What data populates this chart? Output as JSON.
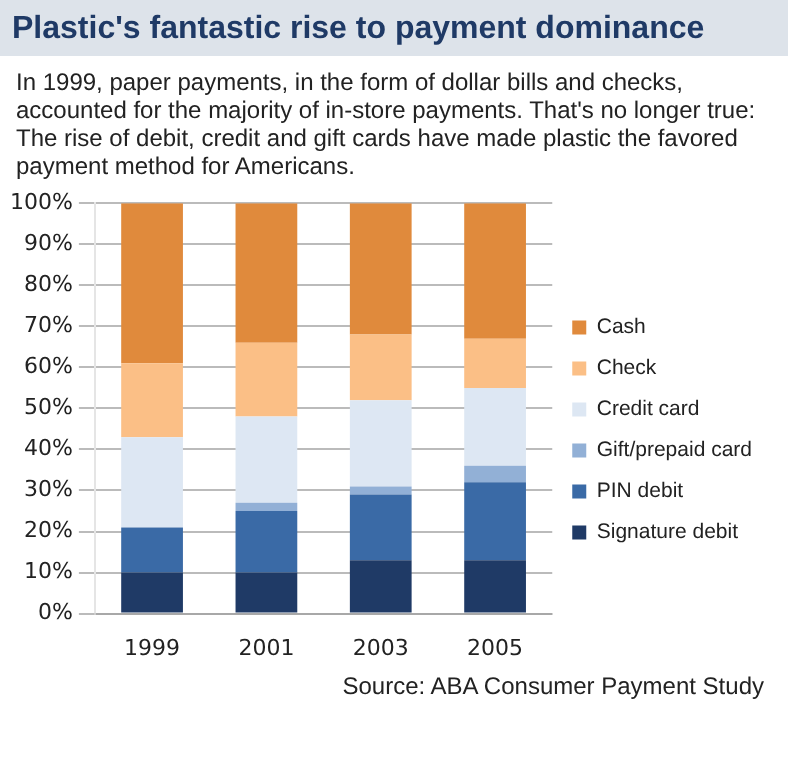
{
  "chart_data": {
    "type": "bar",
    "stacked": true,
    "title": "Plastic's fantastic rise to payment dominance",
    "subtitle": "In  1999, paper payments, in the form of dollar bills and checks, accounted for the majority of in-store payments. That's no longer true: The rise of debit, credit and gift cards have made plastic the favored payment method for Americans.",
    "categories": [
      "1999",
      "2001",
      "2003",
      "2005"
    ],
    "series": [
      {
        "name": "Signature debit",
        "color": "#1f3a66",
        "values": [
          10,
          10,
          13,
          13
        ]
      },
      {
        "name": "PIN debit",
        "color": "#3a6aa6",
        "values": [
          11,
          15,
          16,
          19
        ]
      },
      {
        "name": "Gift/prepaid card",
        "color": "#92b0d6",
        "values": [
          0,
          2,
          2,
          4
        ]
      },
      {
        "name": "Credit card",
        "color": "#dde7f3",
        "values": [
          22,
          21,
          21,
          19
        ]
      },
      {
        "name": "Check",
        "color": "#fbbf86",
        "values": [
          18,
          18,
          16,
          12
        ]
      },
      {
        "name": "Cash",
        "color": "#e08a3c",
        "values": [
          39,
          34,
          32,
          33
        ]
      }
    ],
    "ylim": [
      0,
      100
    ],
    "yticks": [
      {
        "value": 0,
        "label": "0%"
      },
      {
        "value": 10,
        "label": "10%"
      },
      {
        "value": 20,
        "label": "20%"
      },
      {
        "value": 30,
        "label": "30%"
      },
      {
        "value": 40,
        "label": "40%"
      },
      {
        "value": 50,
        "label": "50%"
      },
      {
        "value": 60,
        "label": "60%"
      },
      {
        "value": 70,
        "label": "70%"
      },
      {
        "value": 80,
        "label": "80%"
      },
      {
        "value": 90,
        "label": "90%"
      },
      {
        "value": 100,
        "label": "100%"
      }
    ],
    "grid": "y",
    "legend": "right",
    "annotations": [
      "Source: ABA Consumer Payment Study"
    ]
  }
}
